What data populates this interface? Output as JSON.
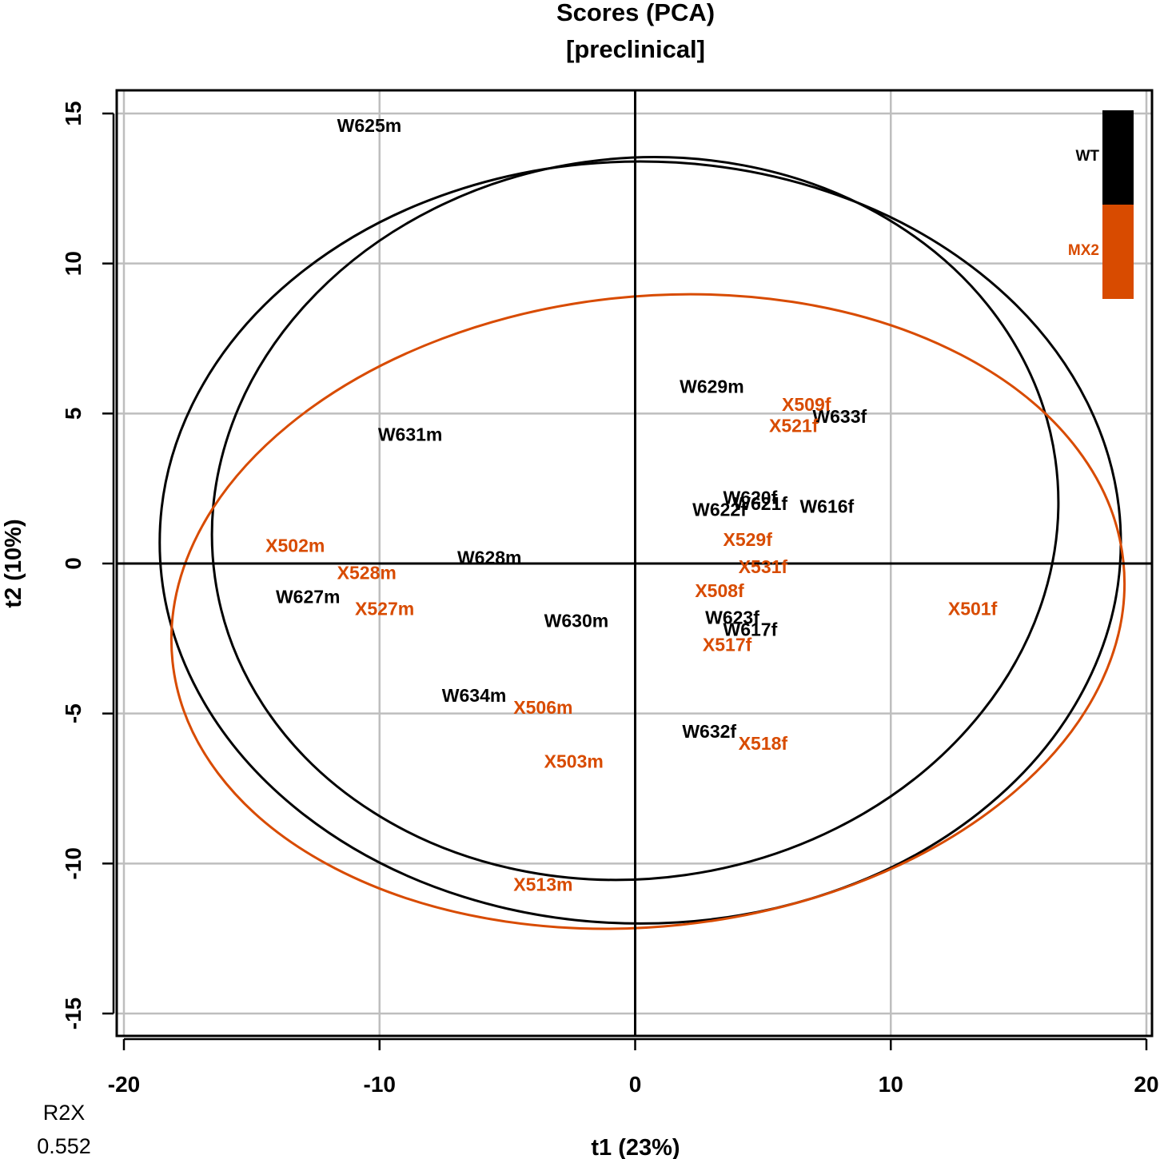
{
  "chart_data": {
    "type": "scatter",
    "title": "Scores (PCA)",
    "subtitle": "[preclinical]",
    "xlabel": "t1 (23%)",
    "ylabel": "t2 (10%)",
    "xlim": [
      -20,
      20
    ],
    "ylim": [
      -15,
      15
    ],
    "x_ticks": [
      -20,
      -10,
      0,
      10,
      20
    ],
    "y_ticks": [
      15,
      10,
      5,
      0,
      -5,
      -10,
      -15
    ],
    "grid": true,
    "legend_position": "top-right",
    "colors": {
      "WT": "#000000",
      "MX2": "#d84b00"
    },
    "legend": [
      {
        "name": "WT",
        "color": "#000000"
      },
      {
        "name": "MX2",
        "color": "#d84b00"
      }
    ],
    "series": [
      {
        "name": "WT",
        "color": "#000000",
        "points": [
          {
            "label": "W625m",
            "x": -10.4,
            "y": 14.6
          },
          {
            "label": "W629m",
            "x": 3.0,
            "y": 5.9
          },
          {
            "label": "W633f",
            "x": 8.0,
            "y": 4.9
          },
          {
            "label": "W631m",
            "x": -8.8,
            "y": 4.3
          },
          {
            "label": "W620f",
            "x": 4.5,
            "y": 2.2
          },
          {
            "label": "W621f",
            "x": 4.9,
            "y": 2.0
          },
          {
            "label": "W616f",
            "x": 7.5,
            "y": 1.9
          },
          {
            "label": "W622f",
            "x": 3.3,
            "y": 1.8
          },
          {
            "label": "W628m",
            "x": -5.7,
            "y": 0.2
          },
          {
            "label": "W627m",
            "x": -12.8,
            "y": -1.1
          },
          {
            "label": "W630m",
            "x": -2.3,
            "y": -1.9
          },
          {
            "label": "W623f",
            "x": 3.8,
            "y": -1.8
          },
          {
            "label": "W617f",
            "x": 4.5,
            "y": -2.2
          },
          {
            "label": "W634m",
            "x": -6.3,
            "y": -4.4
          },
          {
            "label": "W632f",
            "x": 2.9,
            "y": -5.6
          }
        ]
      },
      {
        "name": "MX2",
        "color": "#d84b00",
        "points": [
          {
            "label": "X509f",
            "x": 6.7,
            "y": 5.3
          },
          {
            "label": "X521f",
            "x": 6.2,
            "y": 4.6
          },
          {
            "label": "X529f",
            "x": 4.4,
            "y": 0.8
          },
          {
            "label": "X502m",
            "x": -13.3,
            "y": 0.6
          },
          {
            "label": "X531f",
            "x": 5.0,
            "y": -0.1
          },
          {
            "label": "X528m",
            "x": -10.5,
            "y": -0.3
          },
          {
            "label": "X508f",
            "x": 3.3,
            "y": -0.9
          },
          {
            "label": "X527m",
            "x": -9.8,
            "y": -1.5
          },
          {
            "label": "X501f",
            "x": 13.2,
            "y": -1.5
          },
          {
            "label": "X517f",
            "x": 3.6,
            "y": -2.7
          },
          {
            "label": "X506m",
            "x": -3.6,
            "y": -4.8
          },
          {
            "label": "X518f",
            "x": 5.0,
            "y": -6.0
          },
          {
            "label": "X503m",
            "x": -2.4,
            "y": -6.6
          },
          {
            "label": "X513m",
            "x": -3.6,
            "y": -10.7
          }
        ]
      }
    ],
    "ellipses": [
      {
        "group": "T2 Hotelling (all)",
        "color": "#000000",
        "cx": 0.2,
        "cy": 0.7,
        "rx": 18.8,
        "ry": 12.7
      },
      {
        "group": "WT",
        "color": "#000000",
        "cx": 0.0,
        "cy": 1.5,
        "rx": 16.6,
        "ry": 12.0,
        "rotation_deg": -8
      },
      {
        "group": "MX2",
        "color": "#d84b00",
        "cx": 0.5,
        "cy": -1.6,
        "rx": 18.7,
        "ry": 10.5,
        "rotation_deg": -6
      }
    ],
    "annotation": {
      "label": "R2X",
      "value": "0.552"
    }
  }
}
